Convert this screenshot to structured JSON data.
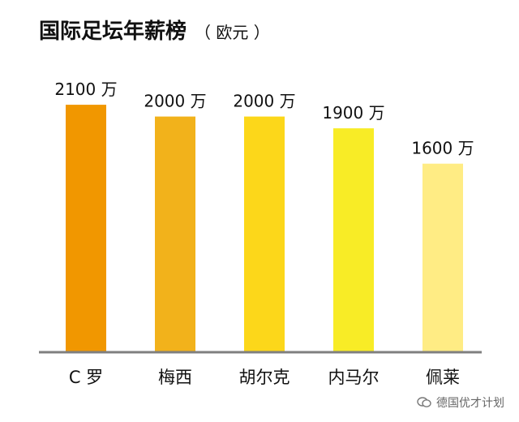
{
  "title": {
    "main": "国际足坛年薪榜",
    "unit": "（ 欧元 ）"
  },
  "watermark": {
    "icon": "wechat-icon",
    "text": "德国优才计划"
  },
  "colors": {
    "axis": "#7f7f7f",
    "text": "#111111"
  },
  "chart_data": {
    "type": "bar",
    "title": "国际足坛年薪榜",
    "subtitle": "（ 欧元 ）",
    "xlabel": "",
    "ylabel": "",
    "unit_suffix": "万",
    "ylim": [
      0,
      2500
    ],
    "grid": false,
    "legend": "none",
    "categories": [
      "C 罗",
      "梅西",
      "胡尔克",
      "内马尔",
      "佩莱"
    ],
    "values": [
      2100,
      2000,
      2000,
      1900,
      1600
    ],
    "labels": [
      "2100 万",
      "2000 万",
      "2000 万",
      "1900 万",
      "1600 万"
    ],
    "bar_colors": [
      "#F19700",
      "#F2B21B",
      "#FCD71A",
      "#F8EC26",
      "#FFEC84"
    ]
  }
}
